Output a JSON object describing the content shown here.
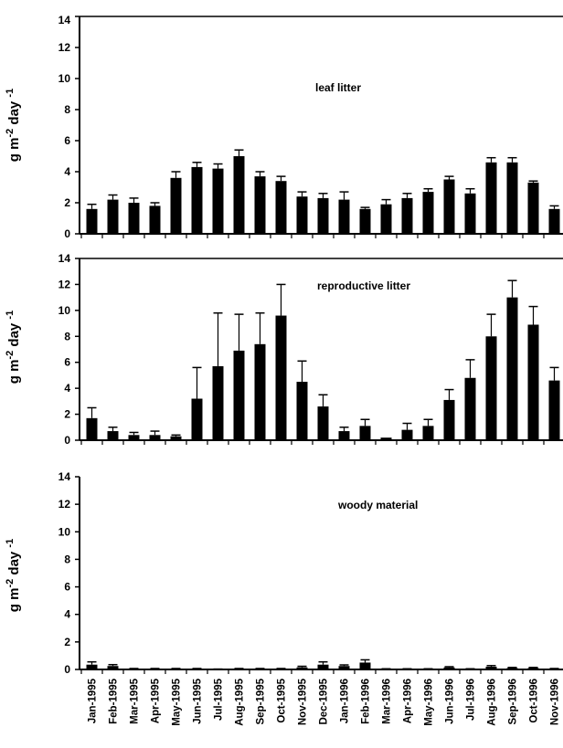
{
  "chart_data": [
    {
      "type": "bar",
      "annotation": "leaf litter",
      "ylabel": "g m-2 day -1",
      "ylabel_parts": [
        "g m",
        "-2",
        " day ",
        "-1"
      ],
      "ylim": [
        0,
        14
      ],
      "yticks": [
        0,
        2,
        4,
        6,
        8,
        10,
        12,
        14
      ],
      "grid": false,
      "categories": [
        "Jan-1995",
        "Feb-1995",
        "Mar-1995",
        "Apr-1995",
        "May-1995",
        "Jun-1995",
        "Jul-1995",
        "Aug-1995",
        "Sep-1995",
        "Oct-1995",
        "Nov-1995",
        "Dec-1995",
        "Jan-1996",
        "Feb-1996",
        "Mar-1996",
        "Apr-1996",
        "May-1996",
        "Jun-1996",
        "Jul-1996",
        "Aug-1996",
        "Sep-1996",
        "Oct-1996",
        "Nov-1996"
      ],
      "values": [
        1.6,
        2.2,
        2.0,
        1.8,
        3.6,
        4.3,
        4.2,
        5.0,
        3.7,
        3.4,
        2.4,
        2.3,
        2.2,
        1.6,
        1.9,
        2.3,
        2.7,
        3.5,
        2.6,
        4.6,
        4.6,
        3.3,
        1.6
      ],
      "errors": [
        0.3,
        0.3,
        0.3,
        0.2,
        0.4,
        0.3,
        0.3,
        0.4,
        0.3,
        0.3,
        0.3,
        0.3,
        0.5,
        0.1,
        0.3,
        0.3,
        0.2,
        0.2,
        0.3,
        0.3,
        0.3,
        0.1,
        0.2
      ]
    },
    {
      "type": "bar",
      "annotation": "reproductive litter",
      "ylabel": "g m-2 day -1",
      "ylabel_parts": [
        "g m",
        "-2",
        " day ",
        "-1"
      ],
      "ylim": [
        0,
        14
      ],
      "yticks": [
        0,
        2,
        4,
        6,
        8,
        10,
        12,
        14
      ],
      "grid": false,
      "categories": [
        "Jan-1995",
        "Feb-1995",
        "Mar-1995",
        "Apr-1995",
        "May-1995",
        "Jun-1995",
        "Jul-1995",
        "Aug-1995",
        "Sep-1995",
        "Oct-1995",
        "Nov-1995",
        "Dec-1995",
        "Jan-1996",
        "Feb-1996",
        "Mar-1996",
        "Apr-1996",
        "May-1996",
        "Jun-1996",
        "Jul-1996",
        "Aug-1996",
        "Sep-1996",
        "Oct-1996",
        "Nov-1996"
      ],
      "values": [
        1.7,
        0.7,
        0.4,
        0.4,
        0.3,
        3.2,
        5.7,
        6.9,
        7.4,
        9.6,
        4.5,
        2.6,
        0.7,
        1.1,
        0.2,
        0.8,
        1.1,
        3.1,
        4.8,
        8.0,
        11.0,
        8.9,
        4.6
      ],
      "errors": [
        0.8,
        0.3,
        0.2,
        0.3,
        0.1,
        2.4,
        4.1,
        2.8,
        2.4,
        2.4,
        1.6,
        0.9,
        0.3,
        0.5,
        0.0,
        0.5,
        0.5,
        0.8,
        1.4,
        1.7,
        1.3,
        1.4,
        1.0
      ]
    },
    {
      "type": "bar",
      "annotation": "woody material",
      "ylabel": "g m-2 day -1",
      "ylabel_parts": [
        "g m",
        "-2",
        " day ",
        "-1"
      ],
      "ylim": [
        0,
        14
      ],
      "yticks": [
        0,
        2,
        4,
        6,
        8,
        10,
        12,
        14
      ],
      "grid": false,
      "categories": [
        "Jan-1995",
        "Feb-1995",
        "Mar-1995",
        "Apr-1995",
        "May-1995",
        "Jun-1995",
        "Jul-1995",
        "Aug-1995",
        "Sep-1995",
        "Oct-1995",
        "Nov-1995",
        "Dec-1995",
        "Jan-1996",
        "Feb-1996",
        "Mar-1996",
        "Apr-1996",
        "May-1996",
        "Jun-1996",
        "Jul-1996",
        "Aug-1996",
        "Sep-1996",
        "Oct-1996",
        "Nov-1996"
      ],
      "values": [
        0.35,
        0.25,
        0.05,
        0.05,
        0.05,
        0.05,
        0.02,
        0.05,
        0.05,
        0.05,
        0.15,
        0.35,
        0.25,
        0.5,
        0.03,
        0.03,
        0.03,
        0.15,
        0.03,
        0.2,
        0.1,
        0.1,
        0.05
      ],
      "errors": [
        0.2,
        0.1,
        0.02,
        0.02,
        0.02,
        0.02,
        0.01,
        0.02,
        0.02,
        0.02,
        0.08,
        0.2,
        0.08,
        0.2,
        0.02,
        0.02,
        0.02,
        0.05,
        0.02,
        0.08,
        0.05,
        0.05,
        0.02
      ]
    }
  ]
}
